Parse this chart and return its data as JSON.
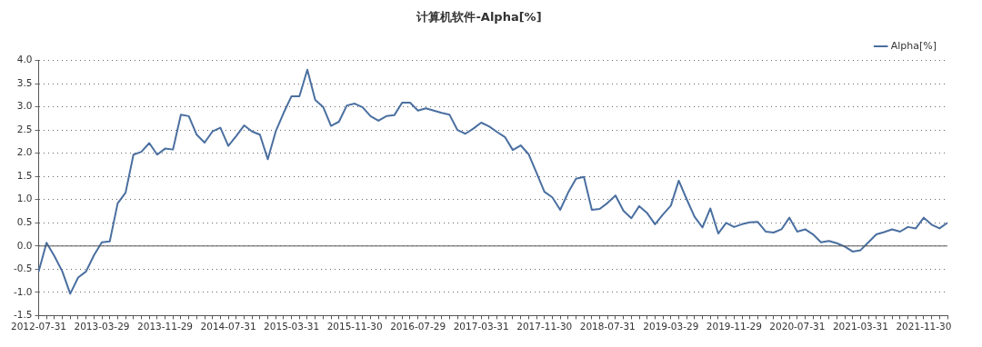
{
  "chart_data": {
    "type": "line",
    "title": "计算机软件-Alpha[%]",
    "categories": [
      "2012-07-31",
      null,
      null,
      null,
      null,
      null,
      null,
      null,
      "2013-03-29",
      null,
      null,
      null,
      null,
      null,
      null,
      null,
      "2013-11-29",
      null,
      null,
      null,
      null,
      null,
      null,
      null,
      "2014-07-31",
      null,
      null,
      null,
      null,
      null,
      null,
      null,
      "2015-03-31",
      null,
      null,
      null,
      null,
      null,
      null,
      null,
      "2015-11-30",
      null,
      null,
      null,
      null,
      null,
      null,
      null,
      "2016-07-29",
      null,
      null,
      null,
      null,
      null,
      null,
      null,
      "2017-03-31",
      null,
      null,
      null,
      null,
      null,
      null,
      null,
      "2017-11-30",
      null,
      null,
      null,
      null,
      null,
      null,
      null,
      "2018-07-31",
      null,
      null,
      null,
      null,
      null,
      null,
      null,
      "2019-03-29",
      null,
      null,
      null,
      null,
      null,
      null,
      null,
      "2019-11-29",
      null,
      null,
      null,
      null,
      null,
      null,
      null,
      "2020-07-31",
      null,
      null,
      null,
      null,
      null,
      null,
      null,
      "2021-03-31",
      null,
      null,
      null,
      null,
      null,
      null,
      null,
      "2021-11-30",
      null,
      null,
      null
    ],
    "series": [
      {
        "name": "Alpha[%]",
        "color": "#4a6fa0",
        "values": [
          -0.55,
          0.07,
          -0.22,
          -0.55,
          -1.03,
          -0.68,
          -0.55,
          -0.2,
          0.08,
          0.1,
          0.92,
          1.15,
          1.97,
          2.03,
          2.22,
          1.97,
          2.1,
          2.08,
          2.83,
          2.8,
          2.4,
          2.23,
          2.47,
          2.55,
          2.16,
          2.37,
          2.6,
          2.47,
          2.4,
          1.87,
          2.47,
          2.87,
          3.23,
          3.23,
          3.8,
          3.15,
          3.0,
          2.59,
          2.68,
          3.03,
          3.07,
          2.99,
          2.8,
          2.7,
          2.8,
          2.82,
          3.09,
          3.09,
          2.92,
          2.97,
          2.92,
          2.87,
          2.83,
          2.5,
          2.42,
          2.53,
          2.66,
          2.58,
          2.46,
          2.35,
          2.07,
          2.17,
          1.98,
          1.58,
          1.17,
          1.05,
          0.78,
          1.15,
          1.45,
          1.49,
          0.78,
          0.8,
          0.93,
          1.09,
          0.76,
          0.6,
          0.86,
          0.71,
          0.47,
          0.68,
          0.87,
          1.41,
          1.01,
          0.63,
          0.4,
          0.81,
          0.27,
          0.5,
          0.41,
          0.47,
          0.51,
          0.52,
          0.31,
          0.29,
          0.36,
          0.61,
          0.31,
          0.36,
          0.25,
          0.08,
          0.11,
          0.06,
          -0.01,
          -0.12,
          -0.09,
          0.08,
          0.25,
          0.3,
          0.36,
          0.31,
          0.41,
          0.38,
          0.61,
          0.46,
          0.38,
          0.5
        ]
      }
    ],
    "ylim": [
      -1.5,
      4.0
    ],
    "yticks": [
      {
        "value": -1.5,
        "label": "-1.5"
      },
      {
        "value": -1,
        "label": "-1.0"
      },
      {
        "value": -0.5,
        "label": "-0.5"
      },
      {
        "value": 0,
        "label": "0.0"
      },
      {
        "value": 0.5,
        "label": "0.5"
      },
      {
        "value": 1,
        "label": "1.0"
      },
      {
        "value": 1.5,
        "label": "1.5"
      },
      {
        "value": 2,
        "label": "2.0"
      },
      {
        "value": 2.5,
        "label": "2.5"
      },
      {
        "value": 3,
        "label": "3.0"
      },
      {
        "value": 3.5,
        "label": "3.5"
      },
      {
        "value": 4,
        "label": "4.0"
      }
    ],
    "grid": "y",
    "legend": "top right",
    "marker": "none",
    "line_style": "solid"
  }
}
